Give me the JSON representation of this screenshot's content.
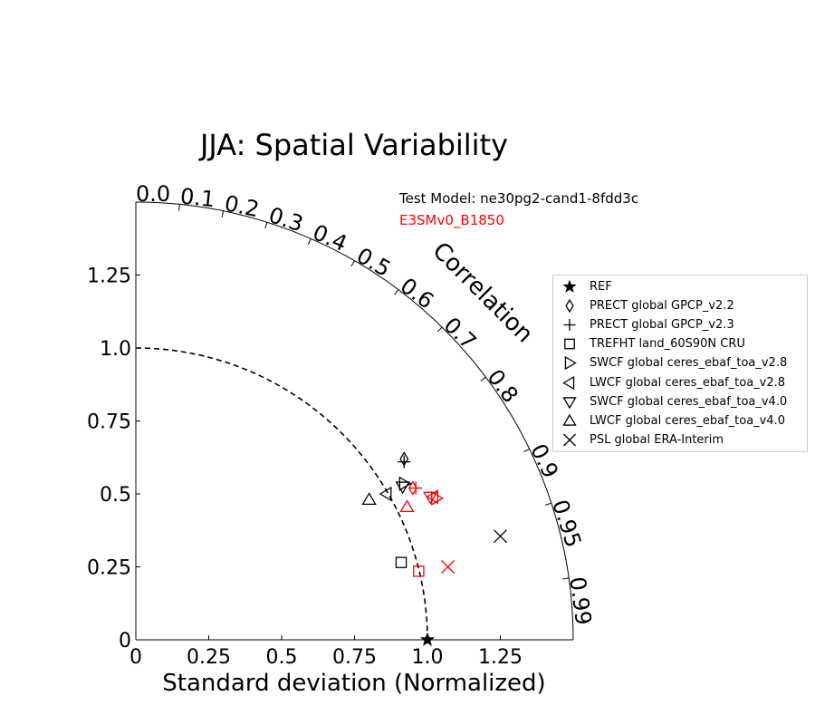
{
  "chart_data": {
    "type": "scatter",
    "subtype": "taylor-diagram",
    "title": "JJA: Spatial Variability",
    "xlabel": "Standard deviation (Normalized)",
    "corr_label": "Correlation",
    "test_model_text": "Test Model: ne30pg2-cand1-8fdd3c",
    "ref_model_text": "E3SMv0_B1850",
    "std_range": [
      0,
      1.5
    ],
    "std_ticks": [
      "0",
      "0.25",
      "0.5",
      "0.75",
      "1.0",
      "1.25"
    ],
    "std_tick_values": [
      0,
      0.25,
      0.5,
      0.75,
      1.0,
      1.25
    ],
    "corr_ticks": [
      "0.0",
      "0.1",
      "0.2",
      "0.3",
      "0.4",
      "0.5",
      "0.6",
      "0.7",
      "0.8",
      "0.9",
      "0.95",
      "0.99"
    ],
    "corr_tick_values": [
      0.0,
      0.1,
      0.2,
      0.3,
      0.4,
      0.5,
      0.6,
      0.7,
      0.8,
      0.9,
      0.95,
      0.99
    ],
    "ref_std": 1.0,
    "colors": {
      "test": "#000000",
      "reference": "#ff0000"
    },
    "legend_position": "right",
    "series": [
      {
        "name": "REF",
        "marker": "star",
        "test": {
          "x": 1.0,
          "y": 0.0
        }
      },
      {
        "name": "PRECT global GPCP_v2.2",
        "marker": "diamond",
        "test": {
          "x": 0.92,
          "y": 0.62
        },
        "reference": {
          "x": 0.95,
          "y": 0.52
        }
      },
      {
        "name": "PRECT global GPCP_v2.3",
        "marker": "plus",
        "test": {
          "x": 0.92,
          "y": 0.61
        },
        "reference": {
          "x": 0.96,
          "y": 0.52
        }
      },
      {
        "name": "TREFHT land_60S90N CRU",
        "marker": "square",
        "test": {
          "x": 0.91,
          "y": 0.265
        },
        "reference": {
          "x": 0.97,
          "y": 0.235
        }
      },
      {
        "name": "SWCF global ceres_ebaf_toa_v2.8",
        "marker": "triangle-right",
        "test": {
          "x": 0.92,
          "y": 0.535
        },
        "reference": {
          "x": 1.03,
          "y": 0.485
        }
      },
      {
        "name": "LWCF global ceres_ebaf_toa_v2.8",
        "marker": "triangle-left",
        "test": {
          "x": 0.86,
          "y": 0.5
        },
        "reference": {
          "x": 1.02,
          "y": 0.49
        }
      },
      {
        "name": "SWCF global ceres_ebaf_toa_v4.0",
        "marker": "triangle-down",
        "test": {
          "x": 0.915,
          "y": 0.525
        },
        "reference": {
          "x": 1.01,
          "y": 0.49
        }
      },
      {
        "name": "LWCF global ceres_ebaf_toa_v4.0",
        "marker": "triangle-up",
        "test": {
          "x": 0.8,
          "y": 0.48
        },
        "reference": {
          "x": 0.93,
          "y": 0.455
        }
      },
      {
        "name": "PSL global ERA-Interim",
        "marker": "x",
        "test": {
          "x": 1.25,
          "y": 0.355
        },
        "reference": {
          "x": 1.07,
          "y": 0.25
        }
      }
    ]
  }
}
